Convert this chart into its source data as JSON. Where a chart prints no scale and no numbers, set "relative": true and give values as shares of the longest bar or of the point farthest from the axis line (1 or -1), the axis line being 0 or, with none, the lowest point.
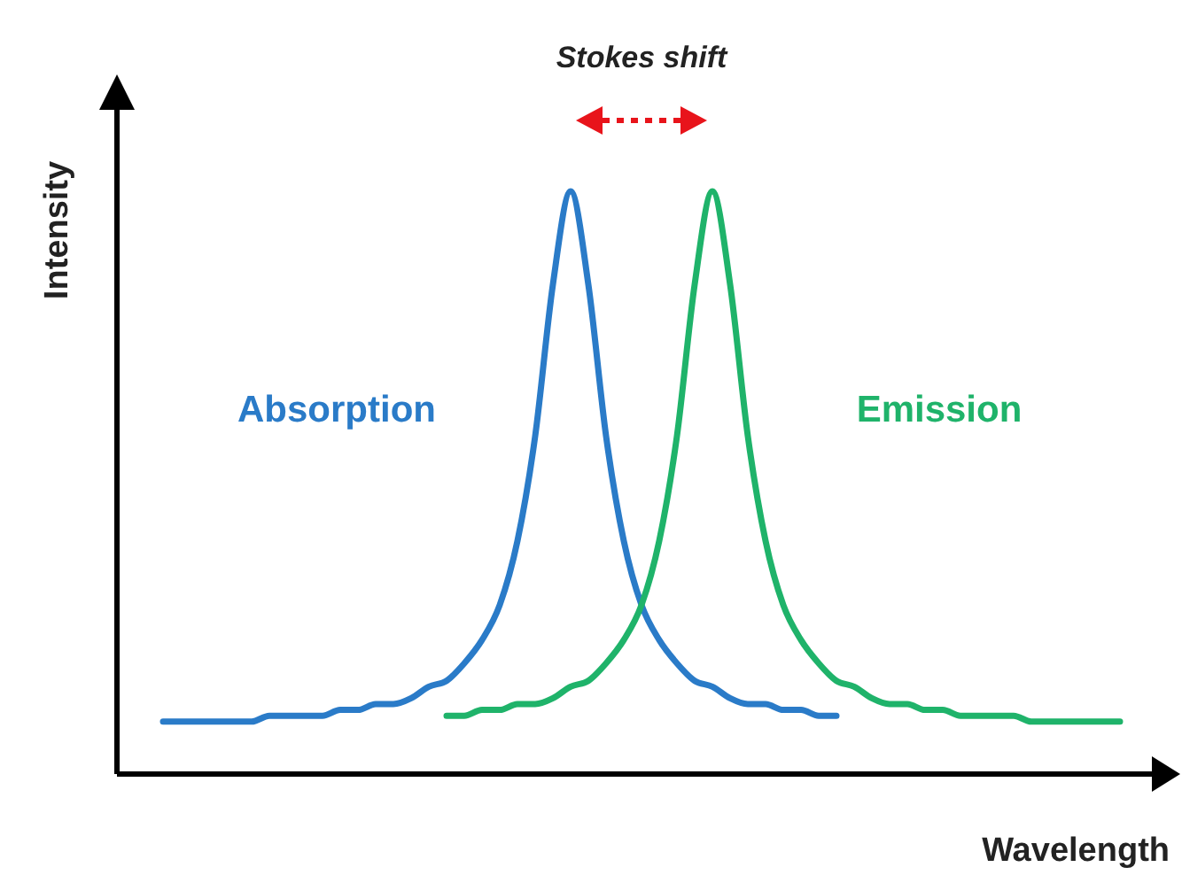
{
  "chart_data": {
    "type": "line",
    "relative": true,
    "xlabel": "Wavelength",
    "ylabel": "Intensity",
    "annotations": [
      "Stokes shift"
    ],
    "categories": [
      null,
      null,
      null,
      null,
      null,
      null,
      null,
      null,
      null,
      null,
      null,
      null,
      null,
      null,
      null,
      null,
      null,
      null,
      null,
      null,
      null,
      null,
      null,
      null,
      null,
      null,
      null,
      null,
      null,
      null,
      null,
      null,
      null,
      null,
      null,
      null,
      null,
      null,
      null,
      null,
      null,
      null,
      null,
      null,
      null,
      null,
      null,
      null,
      null,
      null,
      null,
      null,
      null,
      null,
      null
    ],
    "series": [
      {
        "name": "Absorption",
        "color": "#2a7bc8",
        "values": [
          0.09,
          0.09,
          0.09,
          0.09,
          0.09,
          0.09,
          0.1,
          0.1,
          0.1,
          0.1,
          0.11,
          0.11,
          0.12,
          0.12,
          0.13,
          0.15,
          0.16,
          0.19,
          0.23,
          0.29,
          0.4,
          0.58,
          0.84,
          1,
          0.84,
          0.58,
          0.4,
          0.29,
          0.23,
          0.19,
          0.16,
          0.15,
          0.13,
          0.12,
          0.12,
          0.11,
          0.11,
          0.1,
          0.1,
          null,
          null,
          null,
          null,
          null,
          null,
          null,
          null,
          null,
          null,
          null,
          null,
          null,
          null,
          null,
          null
        ]
      },
      {
        "name": "Emission",
        "color": "#1fb36a",
        "values": [
          null,
          null,
          null,
          null,
          null,
          null,
          null,
          null,
          null,
          null,
          null,
          null,
          null,
          null,
          null,
          null,
          0.1,
          0.1,
          0.11,
          0.11,
          0.12,
          0.12,
          0.13,
          0.15,
          0.16,
          0.19,
          0.23,
          0.29,
          0.4,
          0.58,
          0.84,
          1,
          0.84,
          0.58,
          0.4,
          0.29,
          0.23,
          0.19,
          0.16,
          0.15,
          0.13,
          0.12,
          0.12,
          0.11,
          0.11,
          0.1,
          0.1,
          0.1,
          0.1,
          0.09,
          0.09,
          0.09,
          0.09,
          0.09,
          0.09
        ]
      }
    ]
  }
}
